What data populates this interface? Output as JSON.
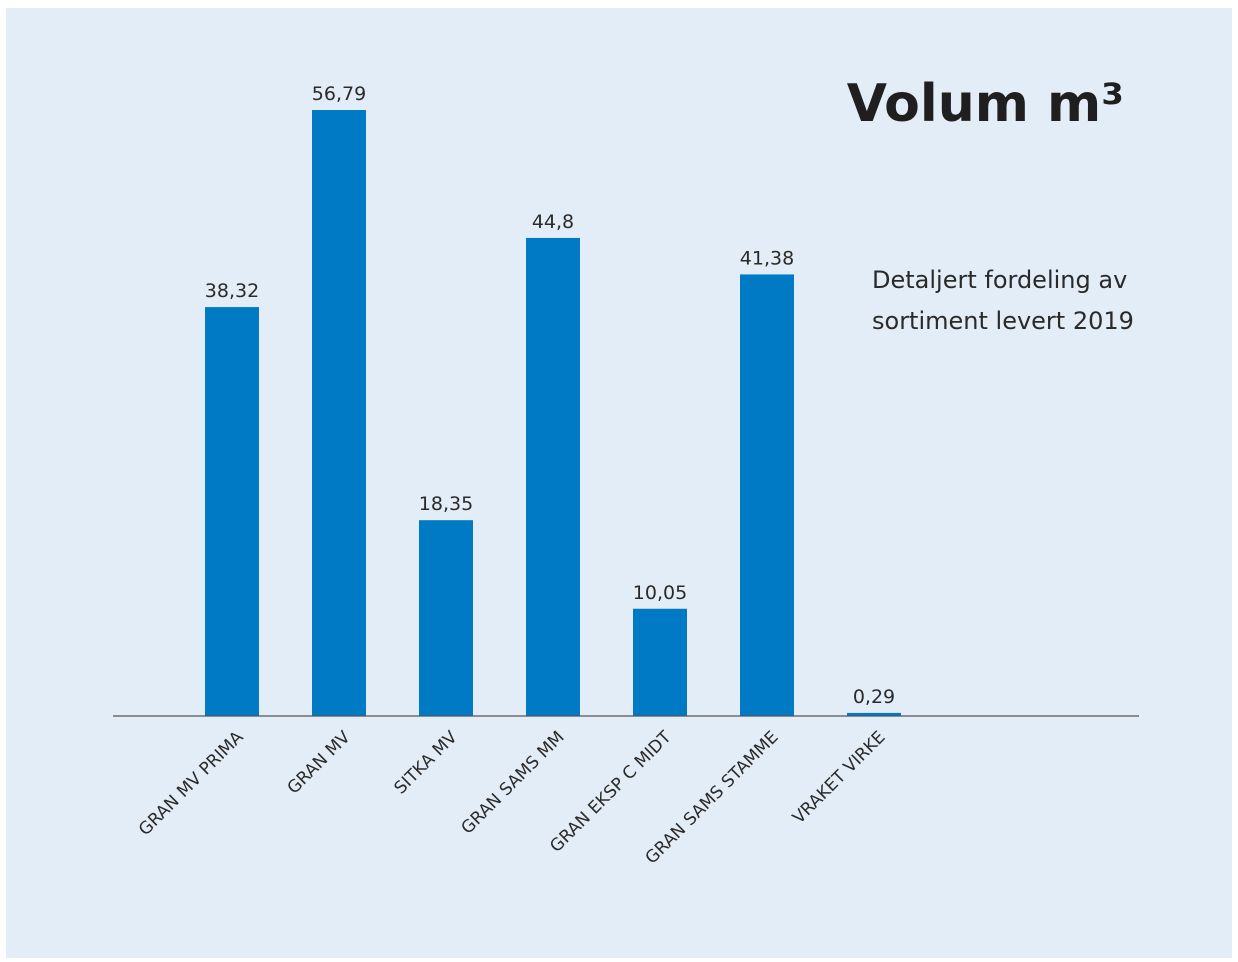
{
  "colors": {
    "panel_background": "#e3edf7",
    "bar": "#007ac4",
    "axis": "#555555"
  },
  "chart_data": {
    "type": "bar",
    "title": "Volum m³",
    "subtitle_lines": [
      "Detaljert fordeling av",
      "sortiment levert 2019"
    ],
    "categories": [
      "GRAN MV PRIMA",
      "GRAN MV",
      "SITKA MV",
      "GRAN SAMS MM",
      "GRAN EKSP C MIDT",
      "GRAN SAMS STAMME",
      "VRAKET VIRKE"
    ],
    "values": [
      38.32,
      56.79,
      18.35,
      44.8,
      10.05,
      41.38,
      0.29
    ],
    "value_labels": [
      "38,32",
      "56,79",
      "18,35",
      "44,8",
      "10,05",
      "41,38",
      "0,29"
    ],
    "ylim": [
      0,
      56.79
    ],
    "grid": false,
    "legend": "none"
  }
}
